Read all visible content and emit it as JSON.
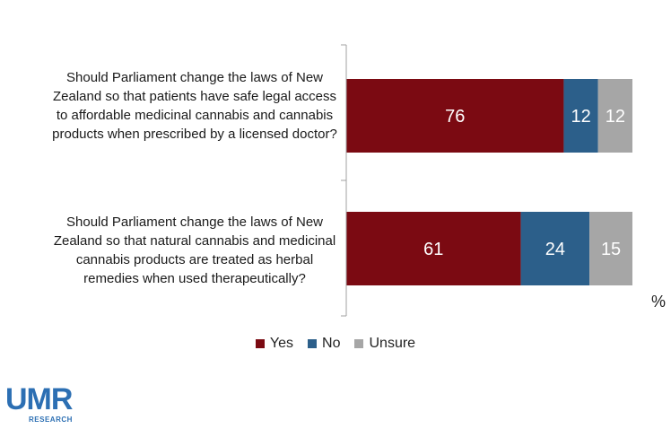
{
  "chart_data": {
    "type": "bar",
    "orientation": "horizontal",
    "stacked": true,
    "unit": "%",
    "categories": [
      "Should Parliament change the laws of New Zealand so that patients have safe legal access to affordable medicinal cannabis and cannabis products when prescribed by a licensed doctor?",
      "Should Parliament change the laws of New Zealand so that natural cannabis and medicinal cannabis products are treated as herbal remedies when used therapeutically?"
    ],
    "series": [
      {
        "name": "Yes",
        "values": [
          76,
          61
        ],
        "color": "#7b0a12"
      },
      {
        "name": "No",
        "values": [
          12,
          24
        ],
        "color": "#2c5f8a"
      },
      {
        "name": "Unsure",
        "values": [
          12,
          15
        ],
        "color": "#a6a6a6"
      }
    ],
    "xlim": [
      0,
      100
    ],
    "grid": false,
    "legend_position": "bottom"
  },
  "logo": {
    "main": "UMR",
    "sub": "RESEARCH"
  }
}
